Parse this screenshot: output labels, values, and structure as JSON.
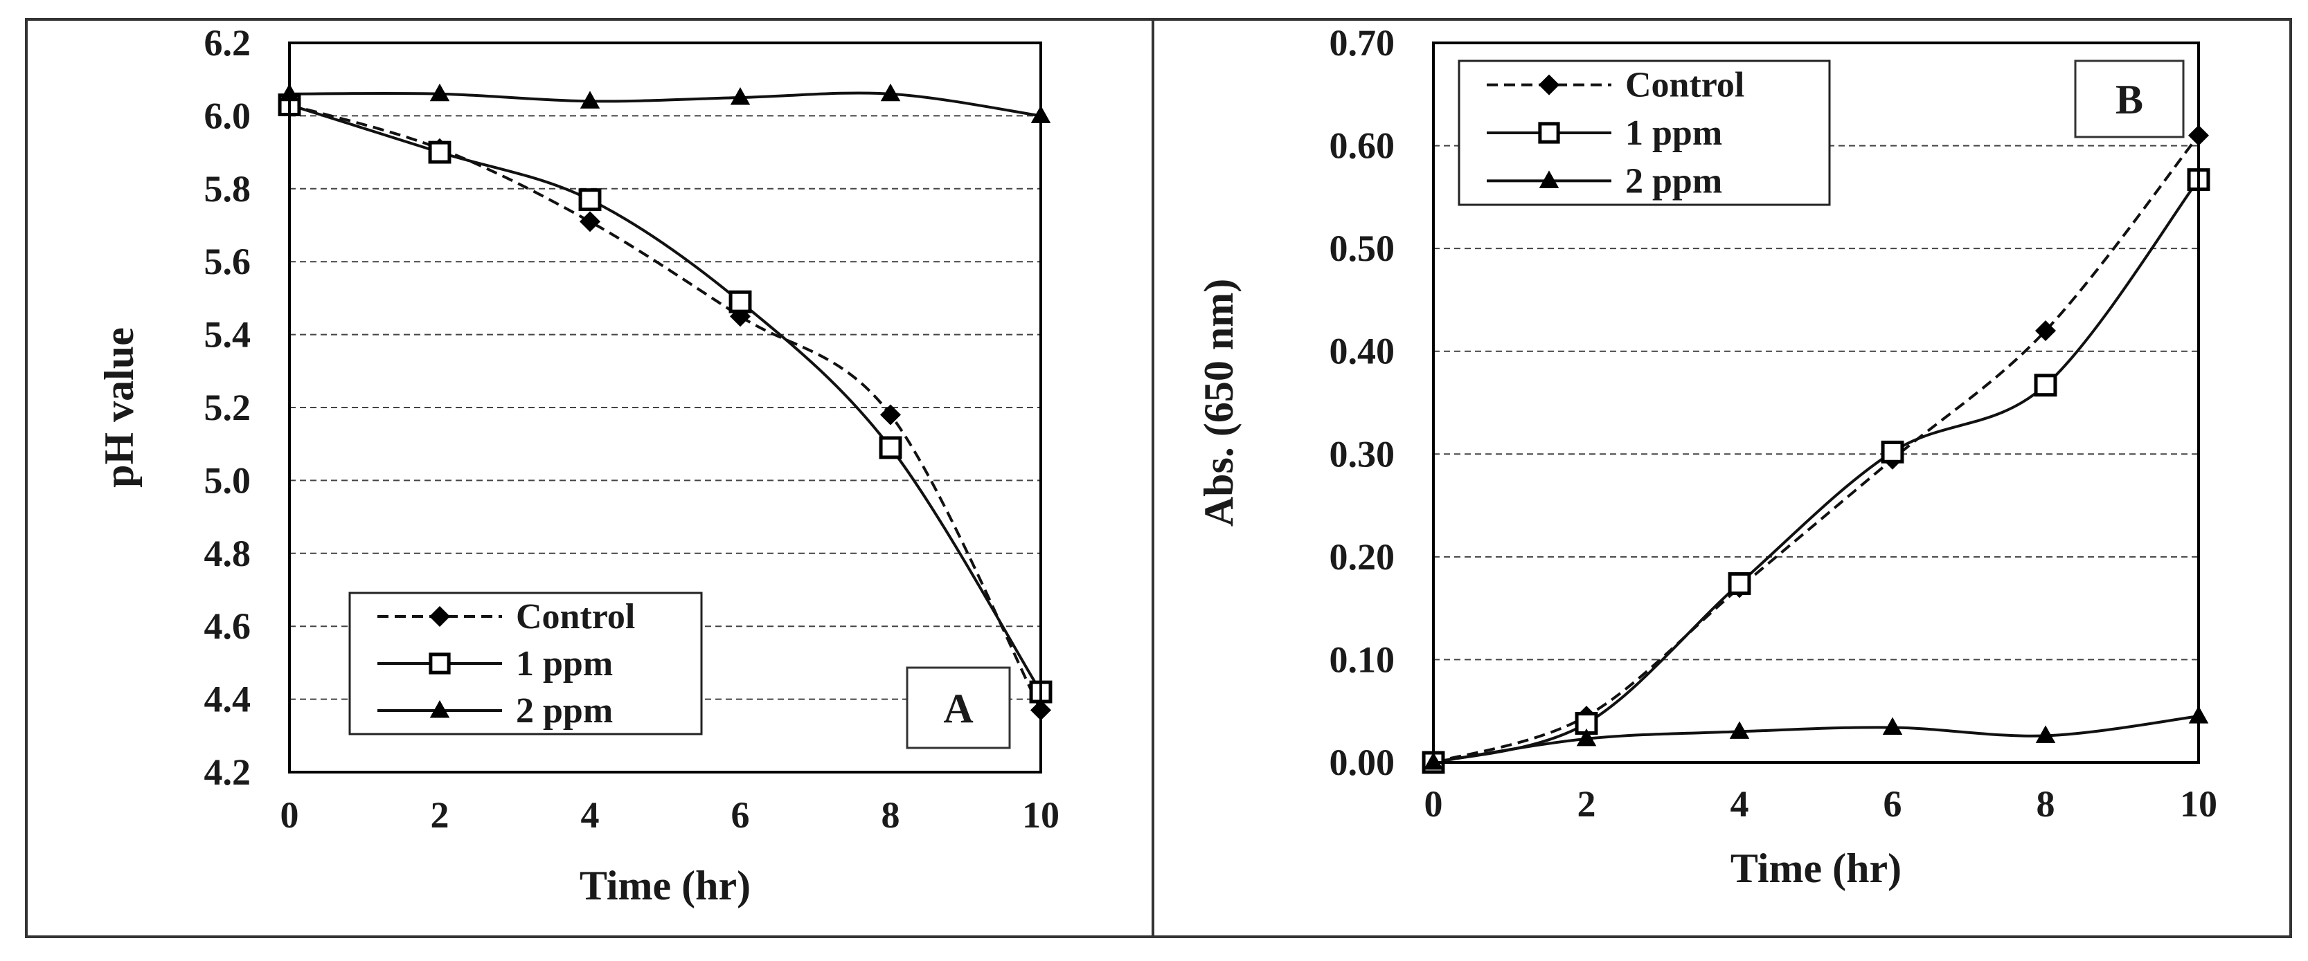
{
  "figure": {
    "panels": [
      "A",
      "B"
    ]
  },
  "chart_data": [
    {
      "type": "line",
      "panel_label": "A",
      "title": "",
      "xlabel": "Time (hr)",
      "ylabel": "pH value",
      "xlim": [
        0,
        10
      ],
      "ylim": [
        4.2,
        6.2
      ],
      "grid": true,
      "legend_position": "bottom-left",
      "x_ticks": [
        "0",
        "2",
        "4",
        "6",
        "8",
        "10"
      ],
      "y_ticks": [
        "4.2",
        "4.4",
        "4.6",
        "4.8",
        "5.0",
        "5.2",
        "5.4",
        "5.6",
        "5.8",
        "6.0",
        "6.2"
      ],
      "x": [
        0,
        2,
        4,
        6,
        8,
        10
      ],
      "series": [
        {
          "name": "Control",
          "marker": "diamond",
          "line": "dashed",
          "values": [
            6.03,
            5.91,
            5.71,
            5.45,
            5.18,
            4.37
          ]
        },
        {
          "name": "1 ppm",
          "marker": "square-open",
          "line": "solid",
          "values": [
            6.03,
            5.9,
            5.77,
            5.49,
            5.09,
            4.42
          ]
        },
        {
          "name": "2 ppm",
          "marker": "triangle",
          "line": "solid",
          "values": [
            6.06,
            6.06,
            6.04,
            6.05,
            6.06,
            6.0
          ]
        }
      ]
    },
    {
      "type": "line",
      "panel_label": "B",
      "title": "",
      "xlabel": "Time (hr)",
      "ylabel": "Abs. (650 nm)",
      "xlim": [
        0,
        10
      ],
      "ylim": [
        0,
        0.7
      ],
      "grid": true,
      "legend_position": "top-left",
      "x_ticks": [
        "0",
        "2",
        "4",
        "6",
        "8",
        "10"
      ],
      "y_ticks": [
        "0.00",
        "0.10",
        "0.20",
        "0.30",
        "0.40",
        "0.50",
        "0.60",
        "0.70"
      ],
      "x": [
        0,
        2,
        4,
        6,
        8,
        10
      ],
      "series": [
        {
          "name": "Control",
          "marker": "diamond",
          "line": "dashed",
          "values": [
            0.0,
            0.045,
            0.17,
            0.295,
            0.42,
            0.61
          ]
        },
        {
          "name": "1 ppm",
          "marker": "square-open",
          "line": "solid",
          "values": [
            0.0,
            0.038,
            0.174,
            0.302,
            0.367,
            0.567
          ]
        },
        {
          "name": "2 ppm",
          "marker": "triangle",
          "line": "solid",
          "values": [
            0.0,
            0.023,
            0.03,
            0.034,
            0.026,
            0.045
          ]
        }
      ]
    }
  ]
}
